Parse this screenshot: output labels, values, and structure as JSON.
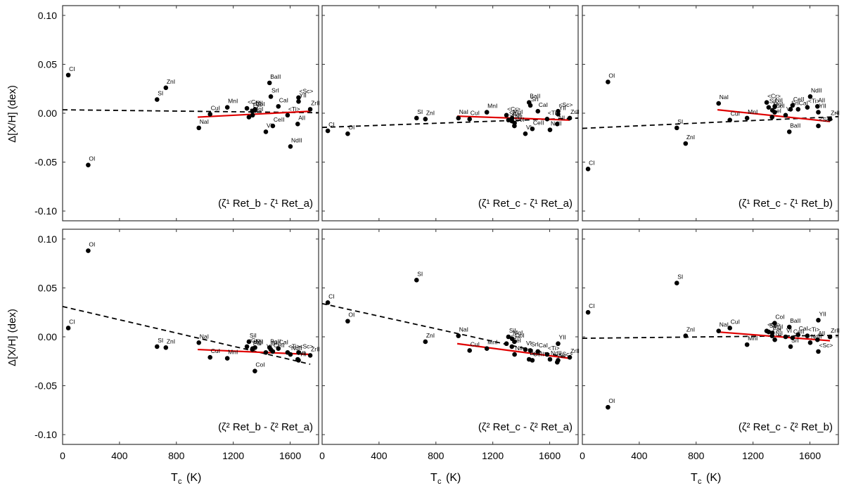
{
  "figure": {
    "ylabel": "Δ[X/H] (dex)",
    "xlabel_main": "T",
    "xlabel_sub": "c",
    "xlabel_unit": "(K)"
  },
  "chart_data": [
    {
      "type": "scatter",
      "panel": "top-left",
      "label": "(ζ¹ Ret_b - ζ¹ Ret_a)",
      "xlim": [
        0,
        1800
      ],
      "ylim": [
        -0.11,
        0.11
      ],
      "xticks": [
        0,
        400,
        800,
        1200,
        1600
      ],
      "yticks": [
        -0.1,
        -0.05,
        0.0,
        0.05,
        0.1
      ],
      "ytick_labels": [
        "-0.10",
        "-0.05",
        "0.00",
        "0.05",
        "0.10"
      ],
      "points": [
        {
          "name": "CI",
          "x": 40,
          "y": 0.039
        },
        {
          "name": "OI",
          "x": 180,
          "y": -0.053
        },
        {
          "name": "SI",
          "x": 664,
          "y": 0.014
        },
        {
          "name": "ZnI",
          "x": 726,
          "y": 0.026
        },
        {
          "name": "NaI",
          "x": 958,
          "y": -0.015
        },
        {
          "name": "CuI",
          "x": 1037,
          "y": -0.001
        },
        {
          "name": "MnI",
          "x": 1158,
          "y": 0.006
        },
        {
          "name": "<Cr>",
          "x": 1296,
          "y": 0.005
        },
        {
          "name": "SiI",
          "x": 1310,
          "y": -0.004
        },
        {
          "name": "MgI",
          "x": 1336,
          "y": -0.002
        },
        {
          "name": "NiI",
          "x": 1353,
          "y": 0.004
        },
        {
          "name": "CoI",
          "x": 1352,
          "y": 0.003
        },
        {
          "name": "FeI",
          "x": 1334,
          "y": 0.002
        },
        {
          "name": "VI",
          "x": 1429,
          "y": -0.019
        },
        {
          "name": "BaII",
          "x": 1455,
          "y": 0.031
        },
        {
          "name": "SrI",
          "x": 1464,
          "y": 0.017
        },
        {
          "name": "CeII",
          "x": 1478,
          "y": -0.013
        },
        {
          "name": "CaI",
          "x": 1517,
          "y": 0.007
        },
        {
          "name": "<Ti>",
          "x": 1582,
          "y": -0.002
        },
        {
          "name": "NdII",
          "x": 1602,
          "y": -0.034
        },
        {
          "name": "YII",
          "x": 1659,
          "y": 0.012
        },
        {
          "name": "<Sc>",
          "x": 1659,
          "y": 0.016
        },
        {
          "name": "AlI",
          "x": 1653,
          "y": -0.011
        },
        {
          "name": "ZrII",
          "x": 1741,
          "y": 0.004
        }
      ],
      "fits": [
        {
          "style": "dashed",
          "color": "#000000",
          "x": [
            0,
            1800
          ],
          "y": [
            0.0035,
            0.0005
          ]
        },
        {
          "style": "solid",
          "color": "#e00000",
          "x": [
            950,
            1741
          ],
          "y": [
            -0.004,
            0.002
          ]
        }
      ]
    },
    {
      "type": "scatter",
      "panel": "top-middle",
      "label": "(ζ¹ Ret_c - ζ¹ Ret_a)",
      "xlim": [
        0,
        1800
      ],
      "ylim": [
        -0.11,
        0.11
      ],
      "xticks": [
        0,
        400,
        800,
        1200,
        1600
      ],
      "yticks": [
        -0.1,
        -0.05,
        0.0,
        0.05,
        0.1
      ],
      "points": [
        {
          "name": "CI",
          "x": 40,
          "y": -0.018
        },
        {
          "name": "OI",
          "x": 180,
          "y": -0.021
        },
        {
          "name": "SI",
          "x": 664,
          "y": -0.005
        },
        {
          "name": "ZnI",
          "x": 726,
          "y": -0.006
        },
        {
          "name": "NaI",
          "x": 958,
          "y": -0.005
        },
        {
          "name": "CuI",
          "x": 1037,
          "y": -0.006
        },
        {
          "name": "MnI",
          "x": 1158,
          "y": 0.001
        },
        {
          "name": "<Cr>",
          "x": 1296,
          "y": -0.002
        },
        {
          "name": "SiI",
          "x": 1310,
          "y": -0.007
        },
        {
          "name": "MgI",
          "x": 1336,
          "y": -0.005
        },
        {
          "name": "FeI",
          "x": 1334,
          "y": -0.008
        },
        {
          "name": "CoI",
          "x": 1352,
          "y": -0.013
        },
        {
          "name": "NiI",
          "x": 1353,
          "y": -0.01
        },
        {
          "name": "VI",
          "x": 1429,
          "y": -0.021
        },
        {
          "name": "BaII",
          "x": 1455,
          "y": 0.011
        },
        {
          "name": "SrI",
          "x": 1464,
          "y": 0.008
        },
        {
          "name": "CeII",
          "x": 1478,
          "y": -0.016
        },
        {
          "name": "CaI",
          "x": 1517,
          "y": 0.002
        },
        {
          "name": "<Ti>",
          "x": 1582,
          "y": -0.006
        },
        {
          "name": "NdII",
          "x": 1602,
          "y": -0.017
        },
        {
          "name": "YII",
          "x": 1659,
          "y": -0.001
        },
        {
          "name": "<Sc>",
          "x": 1659,
          "y": 0.002
        },
        {
          "name": "AlI",
          "x": 1653,
          "y": -0.011
        },
        {
          "name": "ZrII",
          "x": 1741,
          "y": -0.005
        }
      ],
      "fits": [
        {
          "style": "dashed",
          "color": "#000000",
          "x": [
            0,
            1800
          ],
          "y": [
            -0.0145,
            -0.005
          ]
        },
        {
          "style": "solid",
          "color": "#e00000",
          "x": [
            950,
            1741
          ],
          "y": [
            -0.003,
            -0.007
          ]
        }
      ]
    },
    {
      "type": "scatter",
      "panel": "top-right",
      "label": "(ζ¹ Ret_c - ζ¹ Ret_b)",
      "xlim": [
        0,
        1800
      ],
      "ylim": [
        -0.11,
        0.11
      ],
      "xticks": [
        0,
        400,
        800,
        1200,
        1600
      ],
      "yticks": [
        -0.1,
        -0.05,
        0.0,
        0.05,
        0.1
      ],
      "points": [
        {
          "name": "CI",
          "x": 40,
          "y": -0.057
        },
        {
          "name": "OI",
          "x": 180,
          "y": 0.032
        },
        {
          "name": "SI",
          "x": 664,
          "y": -0.015
        },
        {
          "name": "ZnI",
          "x": 726,
          "y": -0.031
        },
        {
          "name": "NaI",
          "x": 958,
          "y": 0.01
        },
        {
          "name": "CuI",
          "x": 1037,
          "y": -0.007
        },
        {
          "name": "MnI",
          "x": 1158,
          "y": -0.005
        },
        {
          "name": "<Cr>",
          "x": 1296,
          "y": 0.011
        },
        {
          "name": "SiI",
          "x": 1310,
          "y": 0.006
        },
        {
          "name": "MgI",
          "x": 1336,
          "y": 0.003
        },
        {
          "name": "NiI",
          "x": 1353,
          "y": 0.007
        },
        {
          "name": "FeI",
          "x": 1334,
          "y": -0.004
        },
        {
          "name": "CoI",
          "x": 1352,
          "y": 0.001
        },
        {
          "name": "VI",
          "x": 1429,
          "y": -0.002
        },
        {
          "name": "BaII",
          "x": 1455,
          "y": -0.019
        },
        {
          "name": "SrI",
          "x": 1464,
          "y": 0.004
        },
        {
          "name": "CeII",
          "x": 1478,
          "y": 0.008
        },
        {
          "name": "CaI",
          "x": 1517,
          "y": 0.004
        },
        {
          "name": "<Ti>",
          "x": 1582,
          "y": 0.006
        },
        {
          "name": "NdII",
          "x": 1602,
          "y": 0.017
        },
        {
          "name": "YII",
          "x": 1659,
          "y": 0.001
        },
        {
          "name": "<Sc>",
          "x": 1659,
          "y": -0.013
        },
        {
          "name": "AlI",
          "x": 1653,
          "y": 0.007
        },
        {
          "name": "ZrII",
          "x": 1741,
          "y": -0.006
        }
      ],
      "fits": [
        {
          "style": "dashed",
          "color": "#000000",
          "x": [
            0,
            1800
          ],
          "y": [
            -0.0155,
            -0.0035
          ]
        },
        {
          "style": "solid",
          "color": "#e00000",
          "x": [
            950,
            1741
          ],
          "y": [
            0.0035,
            -0.0085
          ]
        }
      ]
    },
    {
      "type": "scatter",
      "panel": "bottom-left",
      "label": "(ζ² Ret_b - ζ² Ret_a)",
      "xlim": [
        0,
        1800
      ],
      "ylim": [
        -0.11,
        0.11
      ],
      "xticks": [
        0,
        400,
        800,
        1200,
        1600
      ],
      "yticks": [
        -0.1,
        -0.05,
        0.0,
        0.05,
        0.1
      ],
      "points": [
        {
          "name": "CI",
          "x": 40,
          "y": 0.009
        },
        {
          "name": "OI",
          "x": 180,
          "y": 0.088
        },
        {
          "name": "SI",
          "x": 664,
          "y": -0.01
        },
        {
          "name": "ZnI",
          "x": 726,
          "y": -0.011
        },
        {
          "name": "NaI",
          "x": 958,
          "y": -0.006
        },
        {
          "name": "CuI",
          "x": 1037,
          "y": -0.021
        },
        {
          "name": "MnI",
          "x": 1158,
          "y": -0.022
        },
        {
          "name": "<Cr>",
          "x": 1296,
          "y": -0.01
        },
        {
          "name": "SiI",
          "x": 1310,
          "y": -0.005
        },
        {
          "name": "MgI",
          "x": 1336,
          "y": -0.012
        },
        {
          "name": "NiI",
          "x": 1353,
          "y": -0.011
        },
        {
          "name": "FeI",
          "x": 1334,
          "y": -0.013
        },
        {
          "name": "CoI",
          "x": 1352,
          "y": -0.035
        },
        {
          "name": "VI",
          "x": 1429,
          "y": -0.016
        },
        {
          "name": "BaII",
          "x": 1455,
          "y": -0.011
        },
        {
          "name": "SrI",
          "x": 1464,
          "y": -0.013
        },
        {
          "name": "CeII",
          "x": 1478,
          "y": -0.015
        },
        {
          "name": "CaI",
          "x": 1517,
          "y": -0.012
        },
        {
          "name": "<Ti>",
          "x": 1582,
          "y": -0.016
        },
        {
          "name": "NdII",
          "x": 1602,
          "y": -0.018
        },
        {
          "name": "YII",
          "x": 1659,
          "y": -0.024
        },
        {
          "name": "<Sc>",
          "x": 1659,
          "y": -0.016
        },
        {
          "name": "AlI",
          "x": 1653,
          "y": -0.023
        },
        {
          "name": "ZrII",
          "x": 1741,
          "y": -0.019
        }
      ],
      "fits": [
        {
          "style": "dashed",
          "color": "#000000",
          "x": [
            0,
            1741
          ],
          "y": [
            0.031,
            -0.028
          ]
        },
        {
          "style": "solid",
          "color": "#e00000",
          "x": [
            950,
            1741
          ],
          "y": [
            -0.013,
            -0.018
          ]
        }
      ]
    },
    {
      "type": "scatter",
      "panel": "bottom-middle",
      "label": "(ζ² Ret_c - ζ² Ret_a)",
      "xlim": [
        0,
        1800
      ],
      "ylim": [
        -0.11,
        0.11
      ],
      "xticks": [
        0,
        400,
        800,
        1200,
        1600
      ],
      "yticks": [
        -0.1,
        -0.05,
        0.0,
        0.05,
        0.1
      ],
      "points": [
        {
          "name": "CI",
          "x": 40,
          "y": 0.035
        },
        {
          "name": "OI",
          "x": 180,
          "y": 0.016
        },
        {
          "name": "SI",
          "x": 664,
          "y": 0.058
        },
        {
          "name": "ZnI",
          "x": 726,
          "y": -0.005
        },
        {
          "name": "NaI",
          "x": 958,
          "y": 0.001
        },
        {
          "name": "CuI",
          "x": 1037,
          "y": -0.014
        },
        {
          "name": "MnI",
          "x": 1158,
          "y": -0.012
        },
        {
          "name": "<Cr>",
          "x": 1296,
          "y": -0.007
        },
        {
          "name": "SiI",
          "x": 1310,
          "y": 0.0
        },
        {
          "name": "MgI",
          "x": 1336,
          "y": -0.002
        },
        {
          "name": "NiI",
          "x": 1353,
          "y": -0.018
        },
        {
          "name": "FeI",
          "x": 1334,
          "y": -0.01
        },
        {
          "name": "CoI",
          "x": 1352,
          "y": -0.005
        },
        {
          "name": "VI",
          "x": 1429,
          "y": -0.013
        },
        {
          "name": "BaII",
          "x": 1455,
          "y": -0.023
        },
        {
          "name": "SrI",
          "x": 1464,
          "y": -0.014
        },
        {
          "name": "CeII",
          "x": 1478,
          "y": -0.024
        },
        {
          "name": "CaI",
          "x": 1517,
          "y": -0.015
        },
        {
          "name": "<Ti>",
          "x": 1582,
          "y": -0.018
        },
        {
          "name": "NdII",
          "x": 1602,
          "y": -0.023
        },
        {
          "name": "YII",
          "x": 1659,
          "y": -0.007
        },
        {
          "name": "<Sc>",
          "x": 1659,
          "y": -0.024
        },
        {
          "name": "AlI",
          "x": 1653,
          "y": -0.026
        },
        {
          "name": "ZrII",
          "x": 1741,
          "y": -0.021
        }
      ],
      "fits": [
        {
          "style": "dashed",
          "color": "#000000",
          "x": [
            0,
            1741
          ],
          "y": [
            0.034,
            -0.022
          ]
        },
        {
          "style": "solid",
          "color": "#e00000",
          "x": [
            950,
            1741
          ],
          "y": [
            -0.007,
            -0.022
          ]
        }
      ]
    },
    {
      "type": "scatter",
      "panel": "bottom-right",
      "label": "(ζ² Ret_c - ζ² Ret_b)",
      "xlim": [
        0,
        1800
      ],
      "ylim": [
        -0.11,
        0.11
      ],
      "xticks": [
        0,
        400,
        800,
        1200,
        1600
      ],
      "yticks": [
        -0.1,
        -0.05,
        0.0,
        0.05,
        0.1
      ],
      "points": [
        {
          "name": "CI",
          "x": 40,
          "y": 0.025
        },
        {
          "name": "OI",
          "x": 180,
          "y": -0.072
        },
        {
          "name": "SI",
          "x": 664,
          "y": 0.055
        },
        {
          "name": "ZnI",
          "x": 726,
          "y": 0.001
        },
        {
          "name": "NaI",
          "x": 958,
          "y": 0.006
        },
        {
          "name": "CuI",
          "x": 1037,
          "y": 0.009
        },
        {
          "name": "MnI",
          "x": 1158,
          "y": -0.008
        },
        {
          "name": "<Cr>",
          "x": 1296,
          "y": 0.006
        },
        {
          "name": "SiI",
          "x": 1310,
          "y": 0.005
        },
        {
          "name": "MgI",
          "x": 1336,
          "y": 0.004
        },
        {
          "name": "NiI",
          "x": 1353,
          "y": -0.003
        },
        {
          "name": "FeI",
          "x": 1334,
          "y": 0.001
        },
        {
          "name": "CoI",
          "x": 1352,
          "y": 0.014
        },
        {
          "name": "VI",
          "x": 1429,
          "y": 0.0
        },
        {
          "name": "BaII",
          "x": 1455,
          "y": 0.01
        },
        {
          "name": "SrI",
          "x": 1464,
          "y": -0.01
        },
        {
          "name": "CeII",
          "x": 1478,
          "y": -0.001
        },
        {
          "name": "CaI",
          "x": 1517,
          "y": 0.002
        },
        {
          "name": "<Ti>",
          "x": 1582,
          "y": 0.001
        },
        {
          "name": "NdII",
          "x": 1602,
          "y": -0.006
        },
        {
          "name": "YII",
          "x": 1659,
          "y": 0.017
        },
        {
          "name": "<Sc>",
          "x": 1659,
          "y": -0.015
        },
        {
          "name": "AlI",
          "x": 1653,
          "y": -0.003
        },
        {
          "name": "ZrII",
          "x": 1741,
          "y": 0.0
        }
      ],
      "fits": [
        {
          "style": "dashed",
          "color": "#000000",
          "x": [
            0,
            1800
          ],
          "y": [
            -0.0015,
            0.0015
          ]
        },
        {
          "style": "solid",
          "color": "#e00000",
          "x": [
            950,
            1741
          ],
          "y": [
            0.005,
            -0.004
          ]
        }
      ]
    }
  ]
}
